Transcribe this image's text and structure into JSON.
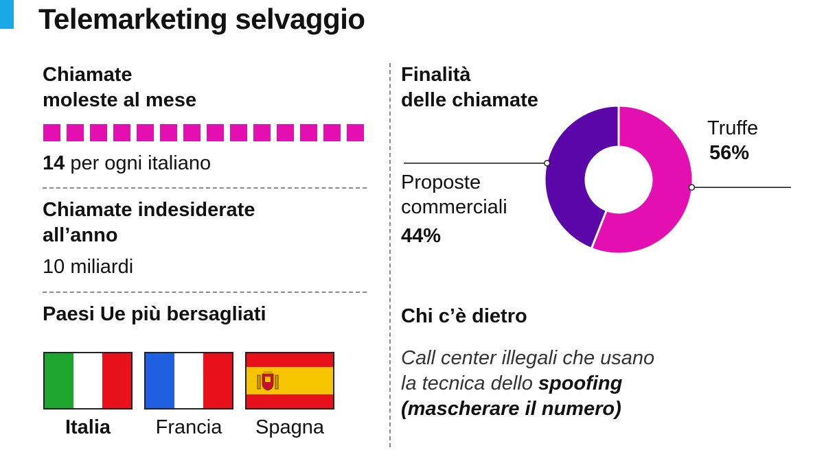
{
  "header": {
    "title": "Telemarketing selvaggio"
  },
  "monthly": {
    "heading_line1": "Chiamate",
    "heading_line2": "moleste al mese",
    "count": 14,
    "value_number": "14",
    "value_text": " per ogni italiano"
  },
  "yearly": {
    "heading_line1": "Chiamate indesiderate",
    "heading_line2": "all’anno",
    "value": "10 miliardi"
  },
  "countries": {
    "heading": "Paesi Ue più bersagliati",
    "items": [
      {
        "name": "Italia"
      },
      {
        "name": "Francia"
      },
      {
        "name": "Spagna"
      }
    ]
  },
  "purpose": {
    "heading_line1": "Finalità",
    "heading_line2": "delle chiamate"
  },
  "who": {
    "heading": "Chi c’è dietro",
    "line1": "Call center illegali che usano",
    "line2_prefix": "la tecnica dello ",
    "line2_bold": "spoofing",
    "line3": "(mascherare il numero)"
  },
  "colors": {
    "accent": "#1aa7e8",
    "magenta": "#e30fb0",
    "purple": "#5a06a8",
    "italy_green": "#1ea631",
    "france_blue": "#1f5fe0",
    "red": "#e8101a",
    "spain_yellow": "#f7c400",
    "white": "#ffffff"
  },
  "chart_data": {
    "type": "pie",
    "title": "Finalità delle chiamate",
    "series": [
      {
        "name": "Truffe",
        "value": 56,
        "label": "56%",
        "color": "#e30fb0"
      },
      {
        "name": "Proposte commerciali",
        "value": 44,
        "label": "44%",
        "color": "#5a06a8"
      }
    ]
  }
}
